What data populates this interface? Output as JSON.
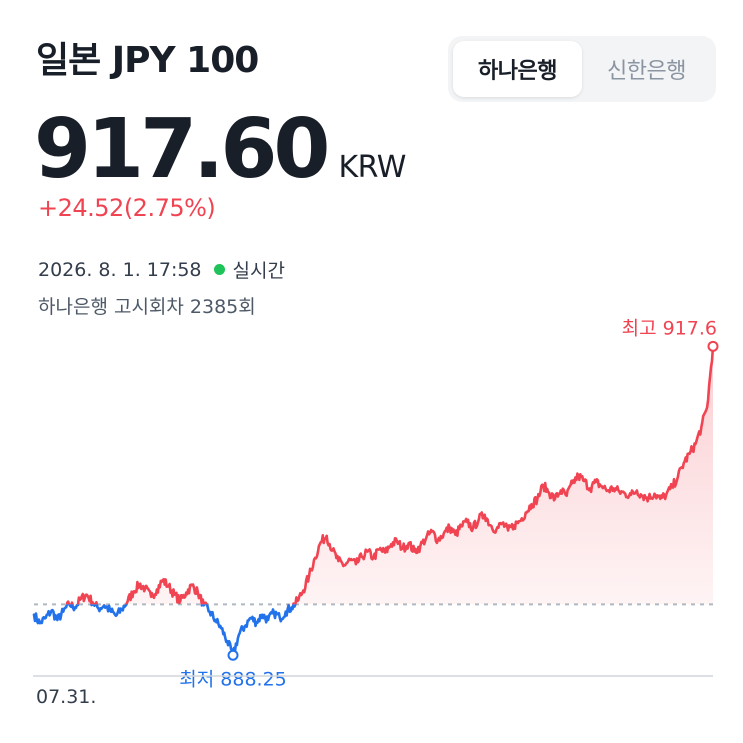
{
  "header": {
    "title": "일본 JPY 100"
  },
  "bank_tabs": [
    {
      "label": "하나은행",
      "selected": true
    },
    {
      "label": "신한은행",
      "selected": false
    }
  ],
  "quote": {
    "price": "917.60",
    "currency": "KRW",
    "change": "+24.52(2.75%)",
    "change_color": "#f04452",
    "timestamp": "2026. 8. 1. 17:58",
    "live_label": "실시간",
    "live_color": "#1fc35a",
    "notice": "하나은행 고시회차 2385회"
  },
  "chart_data": {
    "type": "line",
    "x_label": "07.31.",
    "baseline": 893.08,
    "ylim": [
      884,
      922
    ],
    "high": {
      "label": "최고 917.6",
      "value": 917.6
    },
    "low": {
      "label": "최저 888.25",
      "value": 888.25
    },
    "up_color": "#f04452",
    "down_color": "#2272eb",
    "baseline_color": "#b0b8c1",
    "series": [
      {
        "values": [
          892.1,
          891.3,
          891.8,
          892.5,
          891.6,
          892.4,
          893.1,
          892.8,
          893.6,
          894.0,
          893.3,
          892.7,
          893.0,
          892.5,
          892.0,
          892.6,
          893.4,
          894.3,
          895.0,
          894.6,
          893.8,
          894.5,
          895.4,
          894.8,
          894.0,
          893.4,
          894.2,
          894.9,
          894.2,
          893.0,
          892.4,
          891.6,
          890.8,
          889.6,
          888.25,
          890.2,
          891.0,
          891.8,
          891.4,
          892.1,
          891.6,
          892.3,
          891.8,
          892.4,
          892.8,
          893.4,
          894.4,
          895.8,
          897.5,
          899.0,
          899.6,
          898.2,
          897.2,
          896.8,
          897.3,
          896.9,
          897.6,
          898.1,
          897.5,
          898.3,
          898.0,
          898.8,
          899.1,
          898.4,
          898.9,
          898.1,
          898.6,
          899.4,
          900.0,
          899.2,
          899.8,
          900.4,
          899.7,
          900.5,
          900.9,
          900.3,
          901.2,
          901.6,
          900.6,
          900.2,
          900.8,
          900.1,
          900.6,
          901.0,
          901.8,
          902.6,
          903.1,
          904.4,
          903.7,
          903.1,
          903.9,
          903.4,
          904.6,
          905.3,
          904.8,
          904.1,
          904.7,
          904.3,
          903.9,
          904.1,
          903.8,
          903.6,
          903.5,
          903.9,
          903.4,
          903.2,
          903.6,
          903.1,
          903.5,
          904.2,
          905.2,
          906.5,
          907.4,
          908.3,
          909.9,
          911.8,
          917.6
        ]
      }
    ]
  }
}
